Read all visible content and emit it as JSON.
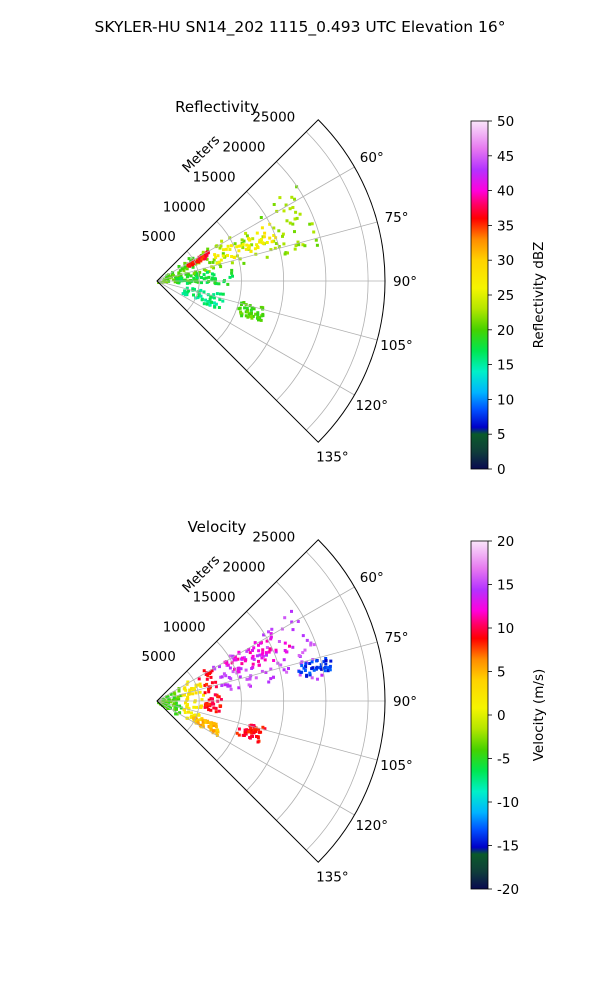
{
  "figure": {
    "title": "SKYLER-HU  SN14_202  1115_0.493 UTC Elevation 16°"
  },
  "colors": {
    "grid": "#b0b0b0",
    "frame": "#000000",
    "background": "#ffffff"
  },
  "chart_data": [
    {
      "type": "polar-sector",
      "title": "Reflectivity",
      "radial_label": "Meters",
      "r_ticks": [
        5000,
        10000,
        15000,
        20000,
        25000
      ],
      "r_max": 27000,
      "theta_range_deg": [
        45,
        135
      ],
      "theta_ticks_deg": [
        60,
        75,
        90,
        105,
        120,
        135
      ],
      "theta_tick_labels": [
        "60°",
        "75°",
        "90°",
        "105°",
        "120°",
        "135°"
      ],
      "grid": true,
      "colorbar": {
        "label": "Reflectivity dBZ",
        "min": 0,
        "max": 50,
        "ticks": [
          0,
          5,
          10,
          15,
          20,
          25,
          30,
          35,
          40,
          45,
          50
        ],
        "colormap": "pyart_HomeyerRainbow_like"
      },
      "echo_regions": [
        {
          "theta_deg": [
            52,
            90
          ],
          "r_m": [
            0,
            5000
          ],
          "value": 20
        },
        {
          "theta_deg": [
            55,
            78
          ],
          "r_m": [
            5000,
            20000
          ],
          "value": 22
        },
        {
          "theta_deg": [
            62,
            72
          ],
          "r_m": [
            7000,
            15000
          ],
          "value": 27
        },
        {
          "theta_deg": [
            58,
            63
          ],
          "r_m": [
            4000,
            7000
          ],
          "value": 36
        },
        {
          "theta_deg": [
            78,
            92
          ],
          "r_m": [
            2000,
            9000
          ],
          "value": 18
        },
        {
          "theta_deg": [
            100,
            115
          ],
          "r_m": [
            3000,
            8000
          ],
          "value": 16
        },
        {
          "theta_deg": [
            103,
            112
          ],
          "r_m": [
            10000,
            13000
          ],
          "value": 20
        }
      ]
    },
    {
      "type": "polar-sector",
      "title": "Velocity",
      "radial_label": "Meters",
      "r_ticks": [
        5000,
        10000,
        15000,
        20000,
        25000
      ],
      "r_max": 27000,
      "theta_range_deg": [
        45,
        135
      ],
      "theta_ticks_deg": [
        60,
        75,
        90,
        105,
        120,
        135
      ],
      "theta_tick_labels": [
        "60°",
        "75°",
        "90°",
        "105°",
        "120°",
        "135°"
      ],
      "grid": true,
      "colorbar": {
        "label": "Velocity (m/s)",
        "min": -20,
        "max": 20,
        "ticks": [
          -20,
          -15,
          -10,
          -5,
          0,
          5,
          10,
          15,
          20
        ],
        "colormap": "pyart_BuDRd18_like"
      },
      "echo_regions": [
        {
          "theta_deg": [
            55,
            125
          ],
          "r_m": [
            0,
            3000
          ],
          "value": -4
        },
        {
          "theta_deg": [
            55,
            120
          ],
          "r_m": [
            3000,
            5500
          ],
          "value": 2
        },
        {
          "theta_deg": [
            55,
            100
          ],
          "r_m": [
            5500,
            7500
          ],
          "value": 9
        },
        {
          "theta_deg": [
            55,
            82
          ],
          "r_m": [
            7500,
            20000
          ],
          "value": 15
        },
        {
          "theta_deg": [
            58,
            70
          ],
          "r_m": [
            9000,
            17000
          ],
          "value": 12
        },
        {
          "theta_deg": [
            75,
            80
          ],
          "r_m": [
            17000,
            21000
          ],
          "value": -14
        },
        {
          "theta_deg": [
            103,
            112
          ],
          "r_m": [
            10000,
            13000
          ],
          "value": 9
        },
        {
          "theta_deg": [
            110,
            120
          ],
          "r_m": [
            4500,
            8000
          ],
          "value": 5
        }
      ]
    }
  ]
}
